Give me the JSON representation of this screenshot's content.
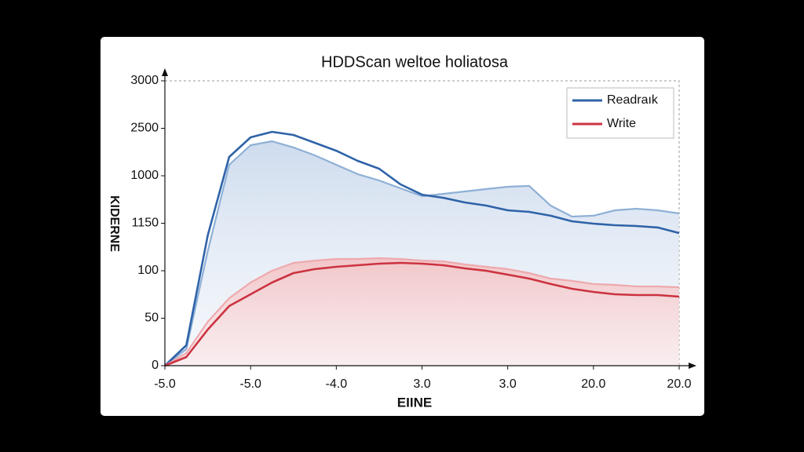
{
  "chart_data": {
    "type": "area-line",
    "title": "HDDScan weltoe holiatosa",
    "x_label": "EIINE",
    "y_label": "KIDERNE",
    "x": [
      0,
      0.25,
      0.5,
      0.75,
      1,
      1.25,
      1.5,
      1.75,
      2,
      2.25,
      2.5,
      2.75,
      3,
      3.25,
      3.5,
      3.75,
      4,
      4.25,
      4.5,
      4.75,
      5,
      5.25,
      5.5,
      5.75,
      6
    ],
    "xlim": [
      0,
      6
    ],
    "xticks": [
      {
        "value": 0,
        "label": "-5.0"
      },
      {
        "value": 1,
        "label": "-5.0"
      },
      {
        "value": 2,
        "label": "-4.0"
      },
      {
        "value": 3,
        "label": "3.0"
      },
      {
        "value": 4,
        "label": "3.0"
      },
      {
        "value": 5,
        "label": "20.0"
      },
      {
        "value": 6,
        "label": "20.0"
      }
    ],
    "ylim": [
      0,
      3000
    ],
    "yticks": [
      0,
      {
        "value": 500,
        "label": "50"
      },
      {
        "value": 1000,
        "label": "100"
      },
      {
        "value": 1500,
        "label": "1150"
      },
      {
        "value": 2000,
        "label": "1000"
      },
      2500,
      3000
    ],
    "legend": "upper right",
    "series": [
      {
        "name": "Readraık",
        "color": "#2f63a8",
        "values": [
          0,
          215,
          1372,
          2198,
          2405,
          2463,
          2430,
          2347,
          2264,
          2157,
          2074,
          1909,
          1801,
          1768,
          1719,
          1686,
          1636,
          1620,
          1579,
          1521,
          1496,
          1479,
          1471,
          1455,
          1397
        ]
      },
      {
        "color": "#8fb0d6",
        "values": [
          0,
          174,
          1207,
          2116,
          2322,
          2364,
          2298,
          2215,
          2116,
          2017,
          1950,
          1868,
          1785,
          1810,
          1835,
          1860,
          1884,
          1893,
          1686,
          1570,
          1579,
          1636,
          1653,
          1636,
          1603
        ],
        "fill": "#c9d8ec"
      },
      {
        "name": "Write",
        "color": "#cc3340",
        "values": [
          0,
          91,
          380,
          628,
          752,
          876,
          975,
          1017,
          1041,
          1058,
          1074,
          1083,
          1074,
          1058,
          1025,
          999,
          959,
          917,
          860,
          810,
          777,
          752,
          744,
          744,
          727
        ]
      },
      {
        "color": "#eeaaae",
        "values": [
          0,
          132,
          463,
          711,
          876,
          1000,
          1083,
          1107,
          1124,
          1124,
          1132,
          1124,
          1107,
          1099,
          1066,
          1041,
          1017,
          975,
          917,
          893,
          860,
          851,
          835,
          835,
          826
        ],
        "fill": "#f3c4c6"
      }
    ]
  }
}
